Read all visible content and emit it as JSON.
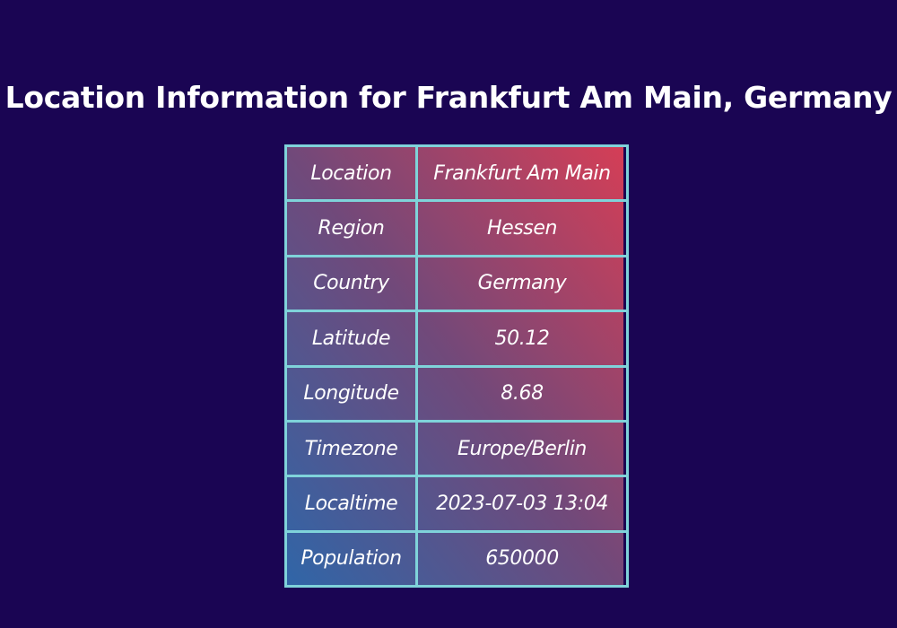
{
  "page": {
    "title": "Location Information for Frankfurt Am Main, Germany"
  },
  "table": {
    "rows": [
      {
        "label": "Location",
        "value": "Frankfurt Am Main"
      },
      {
        "label": "Region",
        "value": "Hessen"
      },
      {
        "label": "Country",
        "value": "Germany"
      },
      {
        "label": "Latitude",
        "value": "50.12"
      },
      {
        "label": "Longitude",
        "value": "8.68"
      },
      {
        "label": "Timezone",
        "value": "Europe/Berlin"
      },
      {
        "label": "Localtime",
        "value": "2023-07-03 13:04"
      },
      {
        "label": "Population",
        "value": "650000"
      }
    ]
  },
  "colors": {
    "background": "#1a0553",
    "border": "#7fd3da",
    "gradient_start": "#2f66a8",
    "gradient_mid": "#71497a",
    "gradient_end": "#d53e56",
    "text": "#ffffff"
  }
}
